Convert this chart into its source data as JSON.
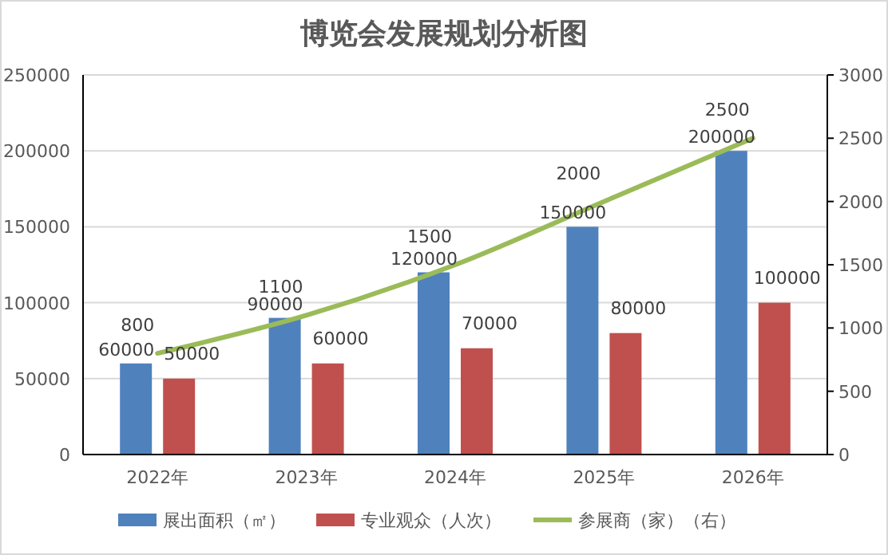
{
  "chart_data": {
    "type": "bar",
    "title": "博览会发展规划分析图",
    "categories": [
      "2022年",
      "2023年",
      "2024年",
      "2025年",
      "2026年"
    ],
    "series": [
      {
        "name": "展出面积（㎡）",
        "color": "#4f81bd",
        "values": [
          60000,
          90000,
          120000,
          150000,
          200000
        ]
      },
      {
        "name": "专业观众（人次）",
        "color": "#c0504d",
        "values": [
          50000,
          60000,
          70000,
          80000,
          100000
        ]
      },
      {
        "name": "参展商（家）（右）",
        "type": "line",
        "axis": "y2",
        "color": "#9bbb59",
        "values": [
          800,
          1100,
          1500,
          2000,
          2500
        ]
      }
    ],
    "ylim": [
      0,
      250000
    ],
    "yticks": [
      0,
      50000,
      100000,
      150000,
      200000,
      250000
    ],
    "y2lim": [
      0,
      3000
    ],
    "y2ticks": [
      0,
      500,
      1000,
      1500,
      2000,
      2500,
      3000
    ],
    "grid": "y",
    "legend": "bottom",
    "data_labels": true
  }
}
